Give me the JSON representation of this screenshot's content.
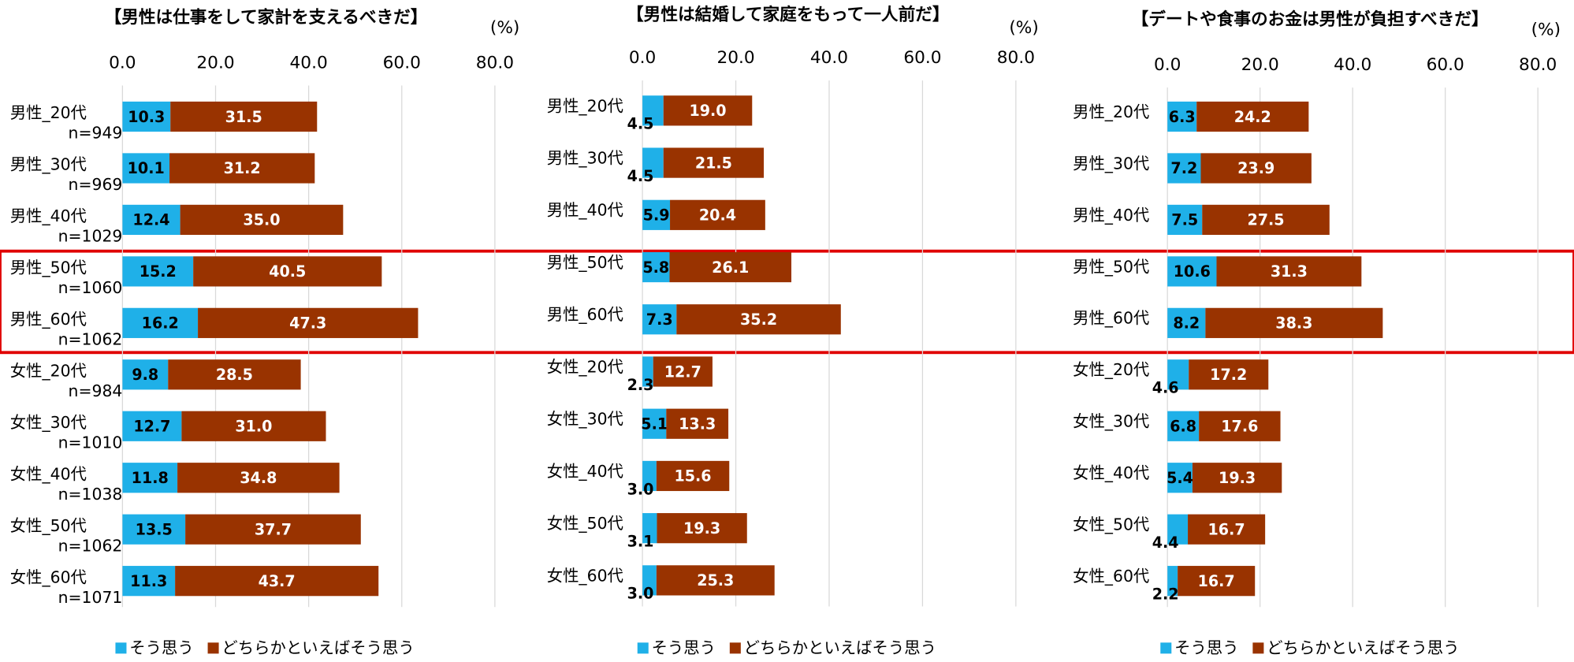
{
  "chart_data": [
    {
      "type": "bar",
      "orientation": "horizontal",
      "stacked": true,
      "title": "【男性は仕事をして家計を支えるべきだ】",
      "unit": "(%)",
      "categories": [
        "男性_20代",
        "男性_30代",
        "男性_40代",
        "男性_50代",
        "男性_60代",
        "女性_20代",
        "女性_30代",
        "女性_40代",
        "女性_50代",
        "女性_60代"
      ],
      "n_labels": [
        "n=949",
        "n=969",
        "n=1029",
        "n=1060",
        "n=1062",
        "n=984",
        "n=1010",
        "n=1038",
        "n=1062",
        "n=1071"
      ],
      "series": [
        {
          "name": "そう思う",
          "color": "#1fb0e8",
          "values": [
            10.3,
            10.1,
            12.4,
            15.2,
            16.2,
            9.8,
            12.7,
            11.8,
            13.5,
            11.3
          ],
          "value_labels": [
            "10.3",
            "10.1",
            "12.4",
            "15.2",
            "16.2",
            "9.8",
            "12.7",
            "11.8",
            "13.5",
            "11.3"
          ]
        },
        {
          "name": "どちらかといえばそう思う",
          "color": "#993300",
          "values": [
            31.5,
            31.2,
            35.0,
            40.5,
            47.3,
            28.5,
            31.0,
            34.8,
            37.7,
            43.7
          ],
          "value_labels": [
            "31.5",
            "31.2",
            "35.0",
            "40.5",
            "47.3",
            "28.5",
            "31.0",
            "34.8",
            "37.7",
            "43.7"
          ]
        }
      ],
      "xlim": [
        0,
        80
      ],
      "xticks": [
        {
          "value": 0,
          "label": "0.0"
        },
        {
          "value": 20,
          "label": "20.0"
        },
        {
          "value": 40,
          "label": "40.0"
        },
        {
          "value": 60,
          "label": "60.0"
        },
        {
          "value": 80,
          "label": "80.0"
        }
      ],
      "grid": true
    },
    {
      "type": "bar",
      "orientation": "horizontal",
      "stacked": true,
      "title": "【男性は結婚して家庭をもって一人前だ】",
      "unit": "(%)",
      "categories": [
        "男性_20代",
        "男性_30代",
        "男性_40代",
        "男性_50代",
        "男性_60代",
        "女性_20代",
        "女性_30代",
        "女性_40代",
        "女性_50代",
        "女性_60代"
      ],
      "series": [
        {
          "name": "そう思う",
          "color": "#1fb0e8",
          "values": [
            4.5,
            4.5,
            5.9,
            5.8,
            7.3,
            2.3,
            5.1,
            3.0,
            3.1,
            3.0
          ],
          "value_labels": [
            "4.5",
            "4.5",
            "5.9",
            "5.8",
            "7.3",
            "2.3",
            "5.1",
            "3.0",
            "3.1",
            "3.0"
          ]
        },
        {
          "name": "どちらかといえばそう思う",
          "color": "#993300",
          "values": [
            19.0,
            21.5,
            20.4,
            26.1,
            35.2,
            12.7,
            13.3,
            15.6,
            19.3,
            25.3
          ],
          "value_labels": [
            "19.0",
            "21.5",
            "20.4",
            "26.1",
            "35.2",
            "12.7",
            "13.3",
            "15.6",
            "19.3",
            "25.3"
          ]
        }
      ],
      "xlim": [
        0,
        80
      ],
      "xticks": [
        {
          "value": 0,
          "label": "0.0"
        },
        {
          "value": 20,
          "label": "20.0"
        },
        {
          "value": 40,
          "label": "40.0"
        },
        {
          "value": 60,
          "label": "60.0"
        },
        {
          "value": 80,
          "label": "80.0"
        }
      ],
      "grid": true
    },
    {
      "type": "bar",
      "orientation": "horizontal",
      "stacked": true,
      "title": "【デートや食事のお金は男性が負担すべきだ】",
      "unit": "(%)",
      "categories": [
        "男性_20代",
        "男性_30代",
        "男性_40代",
        "男性_50代",
        "男性_60代",
        "女性_20代",
        "女性_30代",
        "女性_40代",
        "女性_50代",
        "女性_60代"
      ],
      "series": [
        {
          "name": "そう思う",
          "color": "#1fb0e8",
          "values": [
            6.3,
            7.2,
            7.5,
            10.6,
            8.2,
            4.6,
            6.8,
            5.4,
            4.4,
            2.2
          ],
          "value_labels": [
            "6.3",
            "7.2",
            "7.5",
            "10.6",
            "8.2",
            "4.6",
            "6.8",
            "5.4",
            "4.4",
            "2.2"
          ]
        },
        {
          "name": "どちらかといえばそう思う",
          "color": "#993300",
          "values": [
            24.2,
            23.9,
            27.5,
            31.3,
            38.3,
            17.2,
            17.6,
            19.3,
            16.7,
            16.7
          ],
          "value_labels": [
            "24.2",
            "23.9",
            "27.5",
            "31.3",
            "38.3",
            "17.2",
            "17.6",
            "19.3",
            "16.7",
            "16.7"
          ]
        }
      ],
      "xlim": [
        0,
        80
      ],
      "xticks": [
        {
          "value": 0,
          "label": "0.0"
        },
        {
          "value": 20,
          "label": "20.0"
        },
        {
          "value": 40,
          "label": "40.0"
        },
        {
          "value": 60,
          "label": "60.0"
        },
        {
          "value": 80,
          "label": "80.0"
        }
      ],
      "grid": true
    }
  ]
}
